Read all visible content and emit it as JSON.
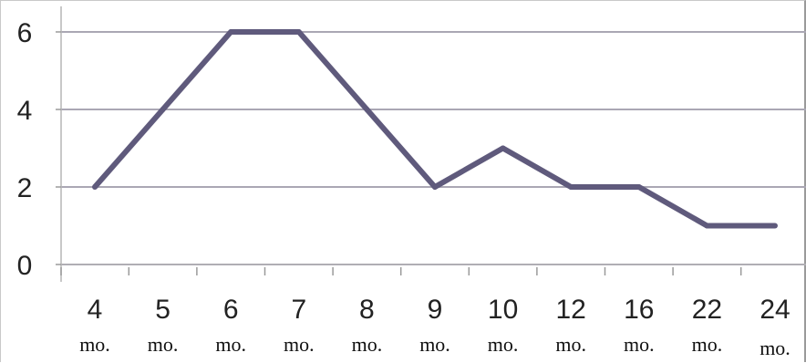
{
  "chart_data": {
    "type": "line",
    "categories": [
      "4",
      "5",
      "6",
      "7",
      "8",
      "9",
      "10",
      "12",
      "16",
      "22",
      "24"
    ],
    "category_unit": "mo.",
    "series": [
      {
        "values": [
          2,
          4,
          6,
          6,
          4,
          2,
          3,
          2,
          2,
          1,
          1
        ],
        "color": "#5f5a7c"
      }
    ],
    "y_ticks": [
      "0",
      "2",
      "4",
      "6"
    ],
    "ylim": [
      0,
      6
    ],
    "grid": true,
    "gridline_color": "#aaa7b4",
    "title": "",
    "xlabel": "",
    "ylabel": ""
  }
}
